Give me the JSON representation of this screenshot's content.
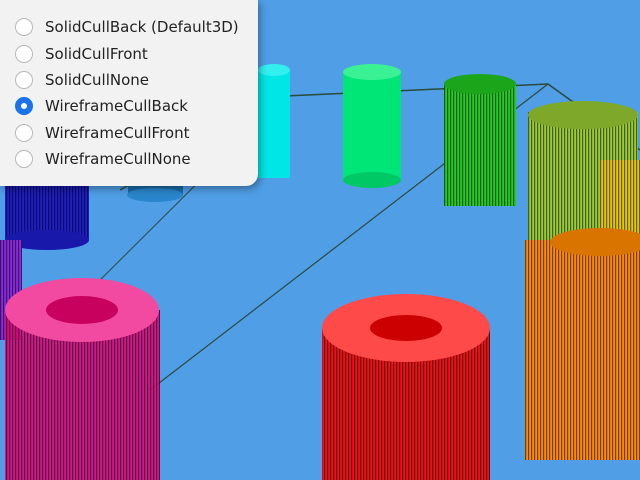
{
  "background_color": "#4f9ee6",
  "radio_group": {
    "selected_index": 3,
    "accent_color": "#1a73e8",
    "options": [
      {
        "label": "SolidCullBack (Default3D)"
      },
      {
        "label": "SolidCullFront"
      },
      {
        "label": "SolidCullNone"
      },
      {
        "label": "WireframeCullBack"
      },
      {
        "label": "WireframeCullFront"
      },
      {
        "label": "WireframeCullNone"
      }
    ]
  },
  "scene": {
    "cylinder_colors": [
      "#00e6e6",
      "#00e676",
      "#22cc22",
      "#9acd32",
      "#e6c800",
      "#ff8c00",
      "#ff0000",
      "#e6007a",
      "#8a2be2",
      "#1e1ecc"
    ]
  }
}
